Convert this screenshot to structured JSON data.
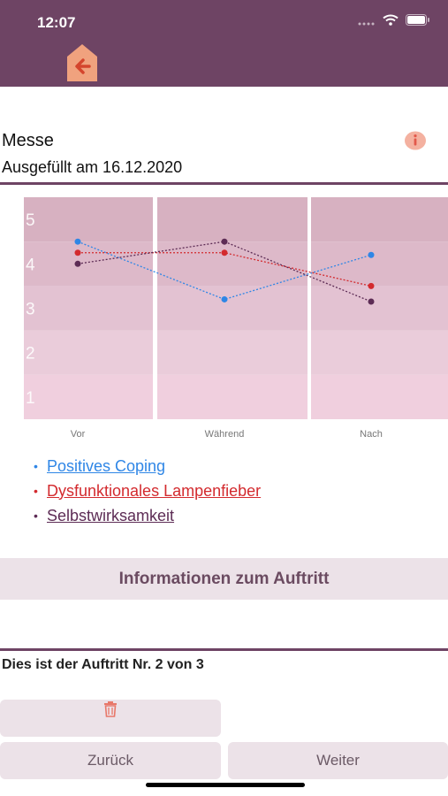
{
  "status_bar": {
    "time": "12:07"
  },
  "header": {
    "back_icon": "arrow-left-icon",
    "accent": "#6e4464"
  },
  "entry": {
    "title": "Messe",
    "filled_date": "Ausgefüllt am 16.12.2020",
    "info_icon": "info-icon"
  },
  "chart_data": {
    "type": "line",
    "categories": [
      "Vor",
      "Während",
      "Nach"
    ],
    "ylim": [
      0,
      5
    ],
    "yticks": [
      "1",
      "2",
      "3",
      "4",
      "5"
    ],
    "series": [
      {
        "name": "Positives Coping",
        "color": "#2f86e6",
        "values": [
          4.0,
          2.7,
          3.7
        ]
      },
      {
        "name": "Dysfunktionales Lampenfieber",
        "color": "#d32a2e",
        "values": [
          3.75,
          3.75,
          3.0
        ]
      },
      {
        "name": "Selbstwirksamkeit",
        "color": "#5d2c55",
        "values": [
          3.5,
          4.0,
          2.65
        ]
      }
    ],
    "grid": true
  },
  "legend": [
    {
      "label": "Positives Coping",
      "color": "#2f86e6"
    },
    {
      "label": "Dysfunktionales Lampenfieber",
      "color": "#d32a2e"
    },
    {
      "label": "Selbstwirksamkeit",
      "color": "#5d2c55"
    }
  ],
  "sections": {
    "info_title": "Informationen zum Auftritt"
  },
  "performance": {
    "text": "Dies ist der Auftritt Nr. 2 von 3"
  },
  "buttons": {
    "delete_icon": "trash-icon",
    "back_label": "Zurück",
    "next_label": "Weiter"
  }
}
